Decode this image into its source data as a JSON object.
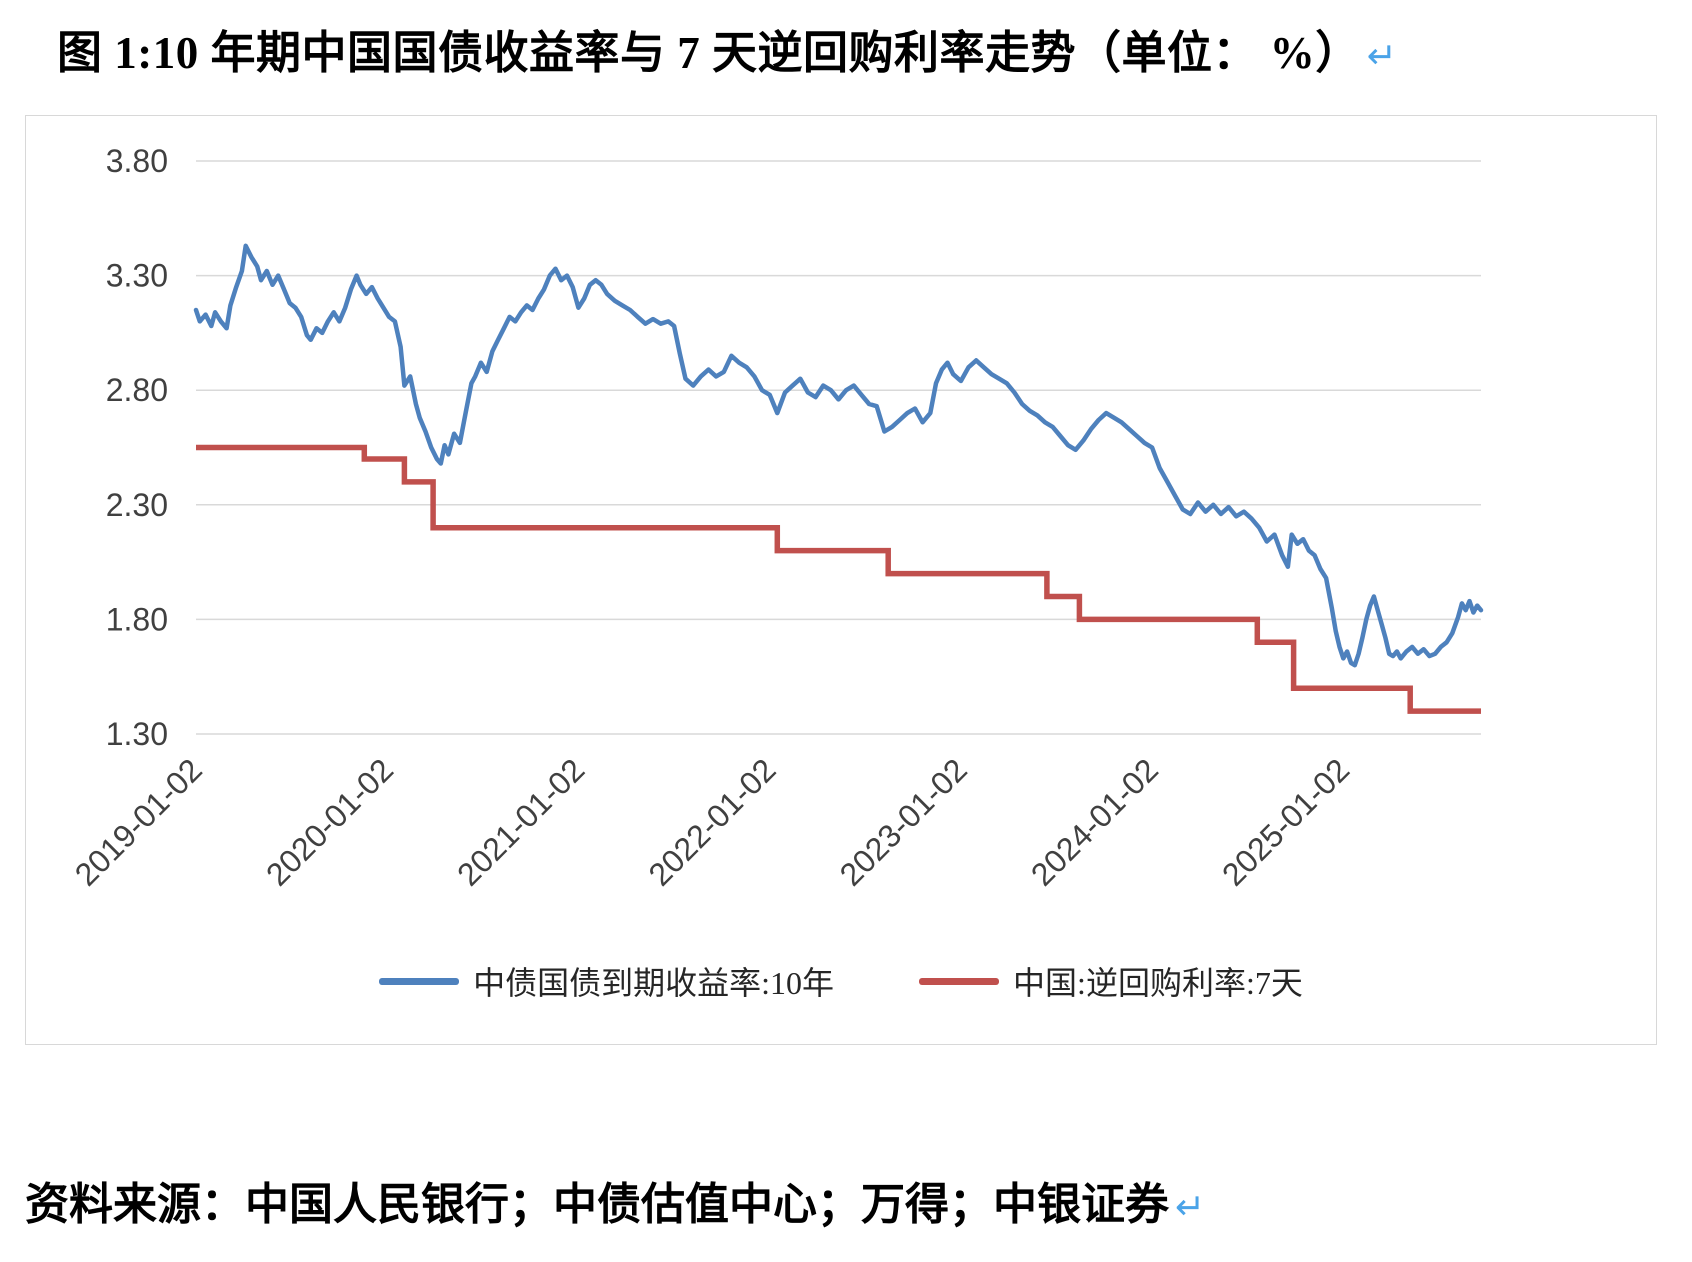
{
  "page": {
    "title": "图 1:10 年期中国国债收益率与 7 天逆回购利率走势（单位： %）",
    "return_mark": "↵",
    "source": "资料来源：中国人民银行；中债估值中心；万得；中银证券"
  },
  "chart_data": {
    "type": "line",
    "title": "10年期中国国债收益率与7天逆回购利率走势",
    "unit": "%",
    "grid": true,
    "legend_position": "bottom",
    "ylim": [
      1.3,
      3.8
    ],
    "yticks": [
      "3.80",
      "3.30",
      "2.80",
      "2.30",
      "1.80",
      "1.30"
    ],
    "ytick_values": [
      3.8,
      3.3,
      2.8,
      2.3,
      1.8,
      1.3
    ],
    "xlim": [
      2019.0,
      2025.72
    ],
    "xticks": [
      2019.0,
      2020.0,
      2021.0,
      2022.0,
      2023.0,
      2024.0,
      2025.0
    ],
    "xtick_labels": [
      "2019-01-02",
      "2020-01-02",
      "2021-01-02",
      "2022-01-02",
      "2023-01-02",
      "2024-01-02",
      "2025-01-02"
    ],
    "colors": {
      "blue": "#4E81BD",
      "red": "#C0504D",
      "grid": "#D9D9D9",
      "axis_text": "#404040"
    },
    "series": [
      {
        "name": "中债国债到期收益率:10年",
        "color": "#4E81BD",
        "width": 4.5,
        "step": false,
        "x": [
          2019.0,
          2019.02,
          2019.05,
          2019.08,
          2019.1,
          2019.13,
          2019.16,
          2019.18,
          2019.21,
          2019.24,
          2019.26,
          2019.29,
          2019.32,
          2019.34,
          2019.37,
          2019.4,
          2019.43,
          2019.46,
          2019.49,
          2019.52,
          2019.55,
          2019.58,
          2019.6,
          2019.63,
          2019.66,
          2019.69,
          2019.72,
          2019.75,
          2019.78,
          2019.81,
          2019.84,
          2019.86,
          2019.89,
          2019.92,
          2019.95,
          2019.98,
          2020.01,
          2020.04,
          2020.07,
          2020.09,
          2020.12,
          2020.15,
          2020.17,
          2020.2,
          2020.23,
          2020.26,
          2020.28,
          2020.3,
          2020.32,
          2020.35,
          2020.38,
          2020.41,
          2020.44,
          2020.46,
          2020.49,
          2020.52,
          2020.55,
          2020.58,
          2020.61,
          2020.64,
          2020.67,
          2020.7,
          2020.73,
          2020.76,
          2020.79,
          2020.82,
          2020.85,
          2020.88,
          2020.91,
          2020.94,
          2020.97,
          2021.0,
          2021.03,
          2021.06,
          2021.09,
          2021.12,
          2021.15,
          2021.19,
          2021.23,
          2021.27,
          2021.31,
          2021.35,
          2021.39,
          2021.43,
          2021.47,
          2021.5,
          2021.53,
          2021.56,
          2021.6,
          2021.64,
          2021.68,
          2021.72,
          2021.76,
          2021.8,
          2021.84,
          2021.88,
          2021.92,
          2021.96,
          2022.0,
          2022.04,
          2022.08,
          2022.12,
          2022.16,
          2022.2,
          2022.24,
          2022.28,
          2022.32,
          2022.36,
          2022.4,
          2022.44,
          2022.48,
          2022.52,
          2022.56,
          2022.6,
          2022.64,
          2022.68,
          2022.72,
          2022.76,
          2022.8,
          2022.84,
          2022.87,
          2022.9,
          2022.93,
          2022.96,
          2023.0,
          2023.04,
          2023.08,
          2023.12,
          2023.16,
          2023.2,
          2023.24,
          2023.28,
          2023.32,
          2023.36,
          2023.4,
          2023.44,
          2023.48,
          2023.52,
          2023.56,
          2023.6,
          2023.64,
          2023.68,
          2023.72,
          2023.76,
          2023.8,
          2023.84,
          2023.88,
          2023.92,
          2023.96,
          2024.0,
          2024.04,
          2024.08,
          2024.12,
          2024.16,
          2024.2,
          2024.24,
          2024.28,
          2024.32,
          2024.36,
          2024.4,
          2024.44,
          2024.48,
          2024.52,
          2024.56,
          2024.6,
          2024.64,
          2024.68,
          2024.71,
          2024.73,
          2024.76,
          2024.79,
          2024.82,
          2024.85,
          2024.88,
          2024.91,
          2024.94,
          2024.96,
          2024.98,
          2025.0,
          2025.02,
          2025.04,
          2025.06,
          2025.08,
          2025.1,
          2025.12,
          2025.14,
          2025.16,
          2025.18,
          2025.2,
          2025.22,
          2025.24,
          2025.26,
          2025.28,
          2025.3,
          2025.33,
          2025.36,
          2025.39,
          2025.42,
          2025.45,
          2025.48,
          2025.51,
          2025.54,
          2025.57,
          2025.6,
          2025.62,
          2025.64,
          2025.66,
          2025.68,
          2025.7,
          2025.72
        ],
        "y": [
          3.15,
          3.1,
          3.13,
          3.08,
          3.14,
          3.1,
          3.07,
          3.17,
          3.25,
          3.32,
          3.43,
          3.38,
          3.34,
          3.28,
          3.32,
          3.26,
          3.3,
          3.24,
          3.18,
          3.16,
          3.12,
          3.04,
          3.02,
          3.07,
          3.05,
          3.1,
          3.14,
          3.1,
          3.16,
          3.24,
          3.3,
          3.26,
          3.22,
          3.25,
          3.2,
          3.16,
          3.12,
          3.1,
          2.99,
          2.82,
          2.86,
          2.74,
          2.68,
          2.62,
          2.55,
          2.5,
          2.48,
          2.56,
          2.52,
          2.61,
          2.57,
          2.7,
          2.83,
          2.86,
          2.92,
          2.88,
          2.97,
          3.02,
          3.07,
          3.12,
          3.1,
          3.14,
          3.17,
          3.15,
          3.2,
          3.24,
          3.3,
          3.33,
          3.28,
          3.3,
          3.25,
          3.16,
          3.2,
          3.26,
          3.28,
          3.26,
          3.22,
          3.19,
          3.17,
          3.15,
          3.12,
          3.09,
          3.11,
          3.09,
          3.1,
          3.08,
          2.96,
          2.85,
          2.82,
          2.86,
          2.89,
          2.86,
          2.88,
          2.95,
          2.92,
          2.9,
          2.86,
          2.8,
          2.78,
          2.7,
          2.79,
          2.82,
          2.85,
          2.79,
          2.77,
          2.82,
          2.8,
          2.76,
          2.8,
          2.82,
          2.78,
          2.74,
          2.73,
          2.62,
          2.64,
          2.67,
          2.7,
          2.72,
          2.66,
          2.7,
          2.83,
          2.89,
          2.92,
          2.87,
          2.84,
          2.9,
          2.93,
          2.9,
          2.87,
          2.85,
          2.83,
          2.79,
          2.74,
          2.71,
          2.69,
          2.66,
          2.64,
          2.6,
          2.56,
          2.54,
          2.58,
          2.63,
          2.67,
          2.7,
          2.68,
          2.66,
          2.63,
          2.6,
          2.57,
          2.55,
          2.46,
          2.4,
          2.34,
          2.28,
          2.26,
          2.31,
          2.27,
          2.3,
          2.26,
          2.29,
          2.25,
          2.27,
          2.24,
          2.2,
          2.14,
          2.17,
          2.08,
          2.03,
          2.17,
          2.13,
          2.15,
          2.1,
          2.08,
          2.02,
          1.98,
          1.85,
          1.75,
          1.68,
          1.63,
          1.66,
          1.61,
          1.6,
          1.65,
          1.72,
          1.8,
          1.86,
          1.9,
          1.84,
          1.78,
          1.72,
          1.65,
          1.64,
          1.66,
          1.63,
          1.66,
          1.68,
          1.65,
          1.67,
          1.64,
          1.65,
          1.68,
          1.7,
          1.74,
          1.81,
          1.87,
          1.84,
          1.88,
          1.83,
          1.86,
          1.84
        ]
      },
      {
        "name": "中国:逆回购利率:7天",
        "color": "#C0504D",
        "width": 5.5,
        "step": true,
        "x": [
          2019.0,
          2019.88,
          2020.09,
          2020.24,
          2022.04,
          2022.62,
          2023.45,
          2023.62,
          2024.55,
          2024.74,
          2025.35,
          2025.72
        ],
        "y": [
          2.55,
          2.5,
          2.4,
          2.2,
          2.1,
          2.0,
          1.9,
          1.8,
          1.7,
          1.5,
          1.4,
          1.4
        ]
      }
    ]
  }
}
